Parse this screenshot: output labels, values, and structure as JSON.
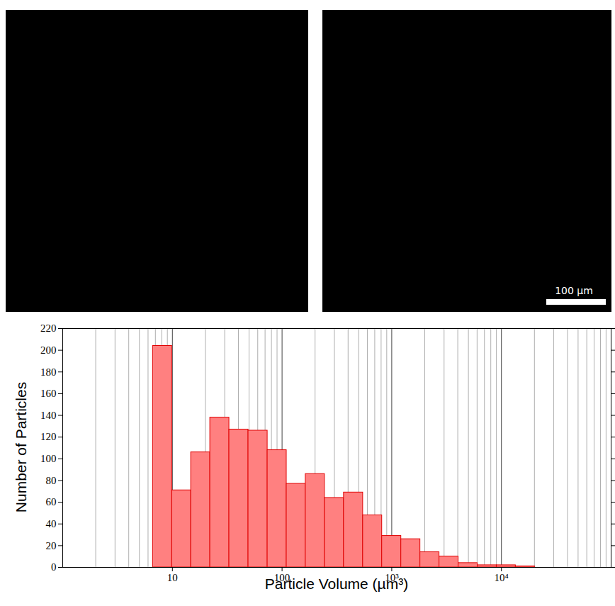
{
  "images": {
    "scale_bar": "100 µm"
  },
  "chart_data": {
    "type": "histogram",
    "xlabel": "Particle Volume (µm³)",
    "ylabel": "Number of Particles",
    "bins": [
      6.65,
      9.93,
      14.8,
      22.1,
      33.0,
      49.3,
      73.7,
      110,
      164,
      245,
      366,
      547,
      816,
      1219,
      1820,
      2717,
      4057,
      6057,
      9044,
      13500,
      20160
    ],
    "values": [
      204,
      71,
      106,
      138,
      127,
      126,
      108,
      77,
      86,
      64,
      69,
      48,
      29,
      26,
      14,
      10,
      4,
      2,
      2,
      1
    ],
    "color": "#ff8080",
    "log": "x",
    "grid": true,
    "xlim": [
      1,
      100000
    ],
    "xticks": [
      10,
      100,
      {
        "value": 1000,
        "label": "10³"
      },
      {
        "value": 10000,
        "label": "10⁴"
      }
    ],
    "ylim": [
      0,
      220
    ],
    "yticks": [
      0,
      20,
      40,
      60,
      80,
      100,
      120,
      140,
      160,
      180,
      200,
      220
    ]
  }
}
